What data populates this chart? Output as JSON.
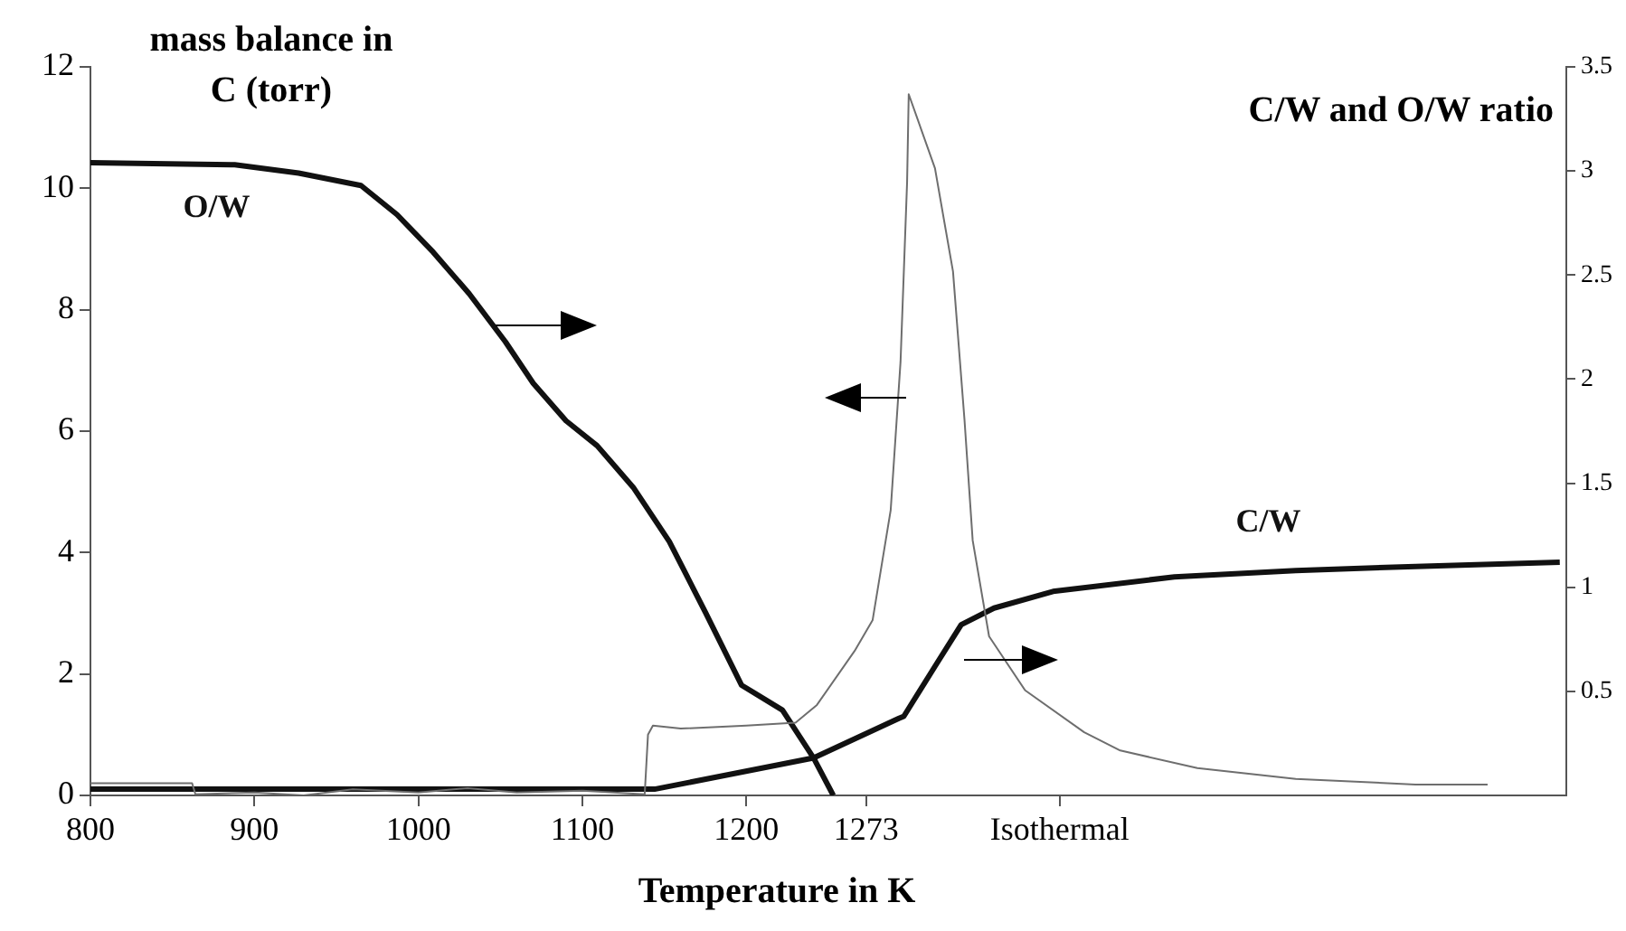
{
  "chart_data": {
    "type": "line",
    "xlabel": "Temperature in K",
    "ylabel": "mass balance in C (torr)",
    "y2label": "C/W and O/W ratio",
    "xlim": [
      800,
      1700
    ],
    "xticks": [
      800,
      900,
      1000,
      1100,
      1200,
      1273,
      {
        "value": 1391,
        "label": "Isothermal"
      }
    ],
    "ylim": [
      0,
      12
    ],
    "yticks": [
      0,
      2,
      4,
      6,
      8,
      10,
      12
    ],
    "y2lim": [
      0,
      3.5
    ],
    "y2ticks": [
      0.5,
      1,
      1.5,
      2,
      2.5,
      3,
      3.5
    ],
    "grid": false,
    "legend": false,
    "marker": "none",
    "line_style": "solid",
    "series": [
      {
        "color": "#6e6e6e",
        "axis": "y",
        "x": [
          800,
          862,
          864,
          900,
          930,
          960,
          1000,
          1030,
          1060,
          1100,
          1138,
          1140,
          1143,
          1160,
          1200,
          1230,
          1243,
          1266,
          1277,
          1288,
          1294,
          1298,
          1299,
          1315,
          1326,
          1333,
          1338,
          1348,
          1370,
          1406,
          1428,
          1475,
          1535,
          1608,
          1652
        ],
        "values": [
          0.2,
          0.2,
          0.02,
          0.05,
          0.0,
          0.1,
          0.05,
          0.12,
          0.05,
          0.08,
          0.02,
          1.0,
          1.15,
          1.1,
          1.15,
          1.2,
          1.49,
          2.38,
          2.89,
          4.7,
          7.14,
          10.1,
          11.55,
          10.33,
          8.63,
          6.19,
          4.2,
          2.62,
          1.73,
          1.04,
          0.74,
          0.45,
          0.27,
          0.18,
          0.18
        ]
      },
      {
        "name": "O/W",
        "color": "#111111",
        "axis": "y2",
        "x": [
          800,
          888,
          927,
          965,
          987,
          1009,
          1031,
          1053,
          1070,
          1090,
          1109,
          1131,
          1153,
          1175,
          1197,
          1222,
          1241,
          1253
        ],
        "values": [
          3.04,
          3.03,
          2.99,
          2.93,
          2.79,
          2.61,
          2.41,
          2.18,
          1.98,
          1.8,
          1.68,
          1.48,
          1.22,
          0.88,
          0.53,
          0.41,
          0.18,
          0
        ]
      },
      {
        "name": "C/W",
        "color": "#111111",
        "axis": "y2",
        "x": [
          800,
          1144,
          1241,
          1293,
          1296,
          1315,
          1331,
          1351,
          1387,
          1461,
          1535,
          1608,
          1696
        ],
        "values": [
          0.03,
          0.03,
          0.18,
          0.37,
          0.38,
          0.62,
          0.82,
          0.9,
          0.98,
          1.05,
          1.08,
          1.1,
          1.12
        ]
      }
    ]
  }
}
